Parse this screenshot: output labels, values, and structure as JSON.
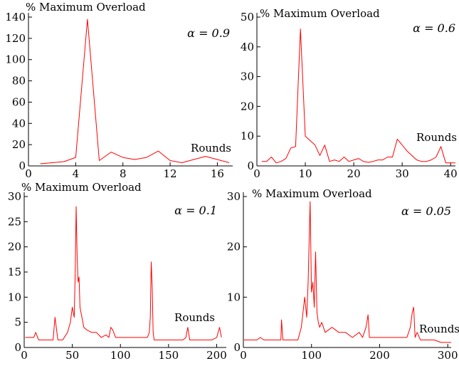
{
  "chart_data": [
    {
      "type": "line",
      "ylabel": "% Maximum Overload",
      "xlabel": "Rounds",
      "annotation": "α = 0.9",
      "xlim": [
        0,
        17.3
      ],
      "ylim": [
        0,
        140
      ],
      "xticks": [
        0,
        4,
        8,
        12,
        16
      ],
      "yticks": [
        0,
        20,
        40,
        60,
        80,
        100,
        120,
        140
      ],
      "series": [
        {
          "x": [
            1,
            2,
            3,
            4,
            5,
            6,
            7,
            8,
            9,
            10,
            11,
            12,
            13,
            14,
            15,
            16,
            17
          ],
          "values": [
            2,
            3,
            4,
            8,
            138,
            5,
            13,
            8,
            6,
            8,
            14,
            5,
            3,
            6,
            9,
            6,
            3
          ]
        }
      ]
    },
    {
      "type": "line",
      "ylabel": "% Maximum Overload",
      "xlabel": "Rounds",
      "annotation": "α = 0.6",
      "xlim": [
        0,
        41
      ],
      "ylim": [
        0,
        50
      ],
      "xticks": [
        0,
        10,
        20,
        30,
        40
      ],
      "yticks": [
        0,
        10,
        20,
        30,
        40,
        50
      ],
      "series": [
        {
          "x": [
            1,
            2,
            3,
            4,
            5,
            6,
            7,
            8,
            9,
            10,
            11,
            12,
            13,
            14,
            15,
            16,
            17,
            18,
            19,
            20,
            21,
            22,
            23,
            24,
            25,
            26,
            27,
            28,
            29,
            30,
            31,
            32,
            33,
            34,
            35,
            36,
            37,
            38,
            39,
            40,
            41
          ],
          "values": [
            1.5,
            1.5,
            3,
            1,
            1.5,
            2.5,
            6,
            6.5,
            46,
            10,
            8.5,
            7,
            3.5,
            7,
            1.5,
            2,
            1.5,
            3,
            1.5,
            2,
            2.5,
            1.5,
            1.2,
            1.5,
            2,
            2,
            3,
            3,
            9,
            7,
            5,
            3.5,
            2,
            1.5,
            1.5,
            2,
            3,
            6.5,
            1,
            1,
            1
          ]
        }
      ]
    },
    {
      "type": "line",
      "ylabel": "% Maximum Overload",
      "xlabel": "Rounds",
      "annotation": "α = 0.1",
      "xlim": [
        0,
        210
      ],
      "ylim": [
        0,
        30
      ],
      "xticks": [
        0,
        50,
        100,
        150,
        200
      ],
      "yticks": [
        0,
        5,
        10,
        15,
        20,
        25,
        30
      ],
      "series": [
        {
          "x": [
            1,
            5,
            10,
            12,
            15,
            20,
            25,
            28,
            30,
            32,
            35,
            40,
            45,
            48,
            50,
            52,
            53,
            54,
            55,
            56,
            57,
            58,
            60,
            62,
            65,
            70,
            75,
            80,
            85,
            88,
            90,
            92,
            95,
            100,
            105,
            110,
            115,
            120,
            125,
            128,
            130,
            131,
            132,
            133,
            134,
            135,
            140,
            145,
            150,
            155,
            160,
            165,
            168,
            170,
            172,
            175,
            180,
            185,
            190,
            195,
            200,
            203,
            205
          ],
          "values": [
            2,
            2,
            2,
            3,
            1.5,
            1.5,
            1.5,
            1.5,
            1.5,
            6,
            1.5,
            1.5,
            3,
            5,
            8,
            6,
            15,
            28,
            18,
            13,
            14,
            8,
            6,
            4,
            3.5,
            3,
            3,
            2,
            2.5,
            2,
            4,
            3.5,
            2,
            2,
            2,
            2,
            2,
            2,
            2,
            2,
            3,
            6,
            17,
            12,
            3,
            1.5,
            1.5,
            1.5,
            1.5,
            1.5,
            1.5,
            1.5,
            2,
            4,
            1.5,
            1.5,
            1.5,
            1.5,
            1.5,
            1.5,
            2,
            4,
            2
          ]
        }
      ]
    },
    {
      "type": "line",
      "ylabel": "% Maximum Overload",
      "xlabel": "Rounds",
      "annotation": "α = 0.05",
      "xlim": [
        0,
        305
      ],
      "ylim": [
        0,
        30
      ],
      "xticks": [
        0,
        100,
        200,
        300
      ],
      "yticks": [
        0,
        10,
        20,
        30
      ],
      "series": [
        {
          "x": [
            1,
            10,
            20,
            25,
            30,
            40,
            50,
            55,
            56,
            58,
            60,
            70,
            80,
            85,
            90,
            93,
            95,
            98,
            100,
            102,
            104,
            106,
            108,
            110,
            112,
            115,
            120,
            130,
            140,
            150,
            160,
            170,
            175,
            180,
            183,
            185,
            190,
            200,
            210,
            220,
            230,
            240,
            245,
            248,
            250,
            252,
            255,
            260,
            270,
            280,
            290,
            300,
            305
          ],
          "values": [
            1.5,
            1.5,
            1.5,
            2,
            1.5,
            1.5,
            1.5,
            1.5,
            5.5,
            1.5,
            1.5,
            1.5,
            1.5,
            4,
            10,
            6,
            13,
            29,
            11,
            13,
            8,
            19,
            7,
            5,
            4,
            5,
            3,
            4,
            3,
            3,
            2,
            3,
            2,
            4,
            6.5,
            2,
            2,
            2,
            2,
            2,
            2,
            2,
            4,
            7,
            8,
            2,
            3,
            1.5,
            1.5,
            1.5,
            1,
            1,
            1
          ]
        }
      ]
    }
  ]
}
